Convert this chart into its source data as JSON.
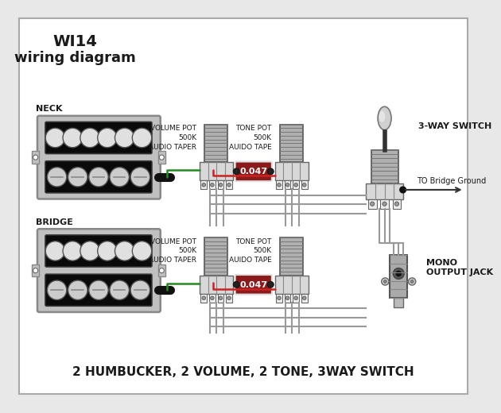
{
  "title": "WI14\nwiring diagram",
  "subtitle": "2 HUMBUCKER, 2 VOLUME, 2 TONE, 3WAY SWITCH",
  "bg_color": "#e8e8e8",
  "border_color": "#aaaaaa",
  "text_color": "#1a1a1a",
  "neck_label": "NECK",
  "bridge_label": "BRIDGE",
  "vol_pot_label": "VOLUME POT\n500K\nAUDIO TAPER",
  "tone_pot_label": "TONE POT\n500K\nAUIDO TAPE",
  "switch_label": "3-WAY SWITCH",
  "output_label": "MONO\nOUTPUT JACK",
  "bridge_ground_label": "TO Bridge Ground",
  "cap_label": "0.047",
  "wire_color_gray": "#999999",
  "wire_color_green": "#228B22",
  "wire_color_red": "#cc2222",
  "wire_color_black": "#111111"
}
